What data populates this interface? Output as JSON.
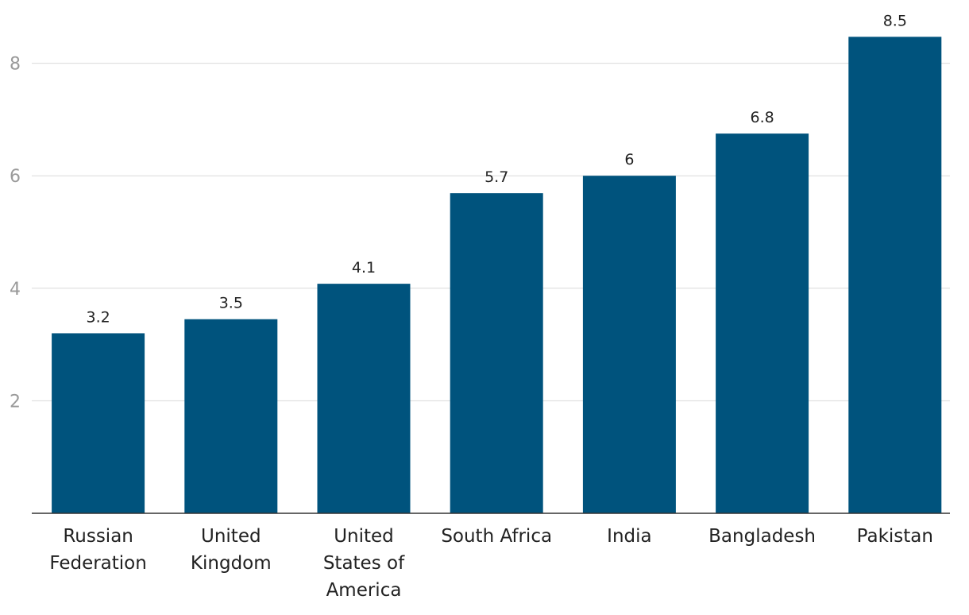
{
  "chart_data": {
    "type": "bar",
    "title": "",
    "xlabel": "",
    "ylabel": "",
    "categories": [
      [
        "Russian",
        "Federation"
      ],
      [
        "United",
        "Kingdom"
      ],
      [
        "United",
        "States of",
        "America"
      ],
      [
        "South Africa"
      ],
      [
        "India"
      ],
      [
        "Bangladesh"
      ],
      [
        "Pakistan"
      ]
    ],
    "values": [
      3.2,
      3.45,
      4.08,
      5.69,
      6.0,
      6.75,
      8.47
    ],
    "value_labels": [
      "3.2",
      "3.5",
      "4.1",
      "5.7",
      "6",
      "6.8",
      "8.5"
    ],
    "yticks": [
      2,
      4,
      6,
      8
    ],
    "ytick_labels": [
      "2",
      "4",
      "6",
      "8"
    ],
    "ylim": [
      0,
      9
    ],
    "grid": true,
    "bar_color": "#00537d"
  }
}
